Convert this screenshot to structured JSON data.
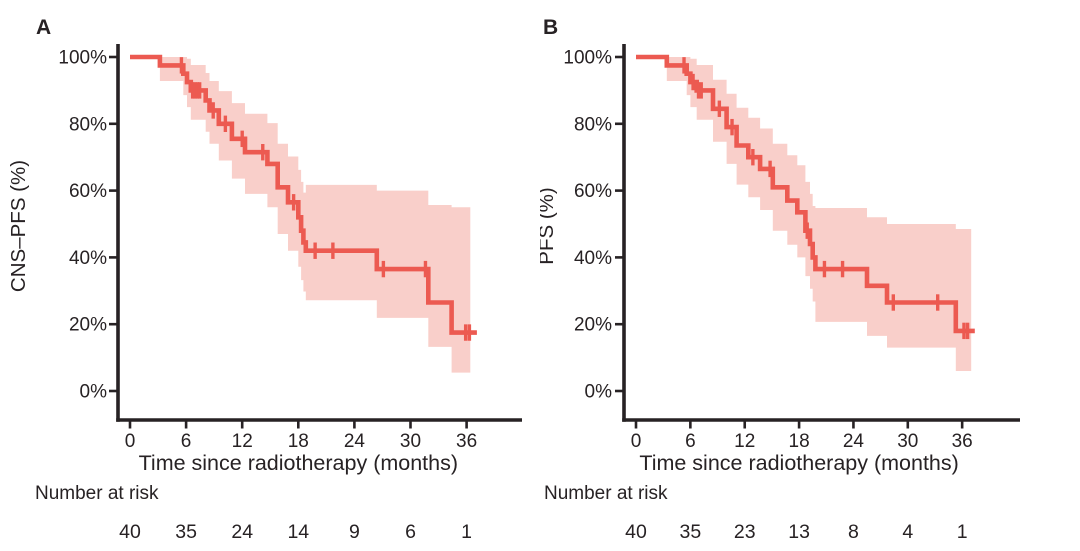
{
  "colors": {
    "curve": "#EC5A51",
    "ci_band": "#F9CFCA",
    "axis": "#272224",
    "text": "#272224",
    "background": "#FFFFFF"
  },
  "chart_data": [
    {
      "panel_label": "A",
      "type": "line",
      "style": "kaplan_meier_step",
      "ylabel": "CNS–PFS (%)",
      "xlabel": "Time since radiotherapy (months)",
      "x_tick_labels": [
        "0",
        "6",
        "12",
        "18",
        "24",
        "30",
        "36"
      ],
      "y_tick_labels": [
        "100%",
        "80%",
        "60%",
        "40%",
        "20%",
        "0%"
      ],
      "xlim": [
        0,
        42
      ],
      "ylim": [
        0,
        100
      ],
      "grid": false,
      "legend": null,
      "series": [
        {
          "name": "CNS-PFS",
          "color": "#EC5A51",
          "steps": [
            {
              "t": 0,
              "s": 100,
              "lo": 100,
              "hi": 100
            },
            {
              "t": 3.2,
              "s": 97.5,
              "lo": 92.8,
              "hi": 100
            },
            {
              "t": 5.7,
              "s": 95,
              "lo": 88.6,
              "hi": 100
            },
            {
              "t": 6.1,
              "s": 92.5,
              "lo": 85,
              "hi": 99.5
            },
            {
              "t": 6.5,
              "s": 90,
              "lo": 81.2,
              "hi": 97.6
            },
            {
              "t": 8.1,
              "s": 87,
              "lo": 77.6,
              "hi": 95.2
            },
            {
              "t": 8.5,
              "s": 84,
              "lo": 74,
              "hi": 92.8
            },
            {
              "t": 9.5,
              "s": 80,
              "lo": 69,
              "hi": 89.8
            },
            {
              "t": 10.9,
              "s": 75.5,
              "lo": 63.6,
              "hi": 86.2
            },
            {
              "t": 12.3,
              "s": 71.5,
              "lo": 59,
              "hi": 83
            },
            {
              "t": 14.7,
              "s": 68,
              "lo": 55,
              "hi": 80.2
            },
            {
              "t": 15.8,
              "s": 61,
              "lo": 47,
              "hi": 74
            },
            {
              "t": 16.9,
              "s": 56.5,
              "lo": 42,
              "hi": 70.2
            },
            {
              "t": 18,
              "s": 52,
              "lo": 37.2,
              "hi": 66.2
            },
            {
              "t": 18.3,
              "s": 48,
              "lo": 33.2,
              "hi": 62.6
            },
            {
              "t": 18.55,
              "s": 44.5,
              "lo": 29.8,
              "hi": 59.4
            },
            {
              "t": 18.8,
              "s": 42,
              "lo": 27.2,
              "hi": 61.7
            },
            {
              "t": 26.4,
              "s": 36.5,
              "lo": 21.9,
              "hi": 60
            },
            {
              "t": 31.9,
              "s": 26.5,
              "lo": 13.2,
              "hi": 55.7
            },
            {
              "t": 34.4,
              "s": 17.5,
              "lo": 5.5,
              "hi": 55
            }
          ]
        }
      ],
      "censor_marks": [
        {
          "t": 5.5,
          "s": 97.5
        },
        {
          "t": 6.7,
          "s": 90
        },
        {
          "t": 6.95,
          "s": 90
        },
        {
          "t": 7.2,
          "s": 90
        },
        {
          "t": 7.45,
          "s": 90
        },
        {
          "t": 8.9,
          "s": 84
        },
        {
          "t": 10.2,
          "s": 80
        },
        {
          "t": 12,
          "s": 75.5
        },
        {
          "t": 14.2,
          "s": 71.5
        },
        {
          "t": 17.5,
          "s": 56.5
        },
        {
          "t": 19.8,
          "s": 42
        },
        {
          "t": 21.7,
          "s": 42
        },
        {
          "t": 27.1,
          "s": 36.5
        },
        {
          "t": 31.6,
          "s": 36.5
        },
        {
          "t": 35.9,
          "s": 17.5
        },
        {
          "t": 36.3,
          "s": 17.5
        }
      ],
      "curve_end_t": 37.1,
      "band_end_t": 36.4,
      "number_at_risk": {
        "label": "Number at risk",
        "times": [
          0,
          6,
          12,
          18,
          24,
          30,
          36
        ],
        "counts": [
          "40",
          "35",
          "24",
          "14",
          "9",
          "6",
          "1"
        ]
      }
    },
    {
      "panel_label": "B",
      "type": "line",
      "style": "kaplan_meier_step",
      "ylabel": "PFS (%)",
      "xlabel": "Time since radiotherapy (months)",
      "x_tick_labels": [
        "0",
        "6",
        "12",
        "18",
        "24",
        "30",
        "36"
      ],
      "y_tick_labels": [
        "100%",
        "80%",
        "60%",
        "40%",
        "20%",
        "0%"
      ],
      "xlim": [
        0,
        42
      ],
      "ylim": [
        0,
        100
      ],
      "grid": false,
      "legend": null,
      "series": [
        {
          "name": "PFS",
          "color": "#EC5A51",
          "steps": [
            {
              "t": 0,
              "s": 100,
              "lo": 100,
              "hi": 100
            },
            {
              "t": 3.4,
              "s": 97.5,
              "lo": 92.8,
              "hi": 100
            },
            {
              "t": 5.6,
              "s": 95,
              "lo": 88.6,
              "hi": 100
            },
            {
              "t": 6,
              "s": 92.5,
              "lo": 85,
              "hi": 99.5
            },
            {
              "t": 6.7,
              "s": 90,
              "lo": 81.2,
              "hi": 97.6
            },
            {
              "t": 8.5,
              "s": 84.5,
              "lo": 74.6,
              "hi": 93.2
            },
            {
              "t": 10,
              "s": 79,
              "lo": 68,
              "hi": 89
            },
            {
              "t": 11.1,
              "s": 73.5,
              "lo": 61.8,
              "hi": 84.8
            },
            {
              "t": 12.4,
              "s": 70,
              "lo": 58,
              "hi": 81.8
            },
            {
              "t": 13.7,
              "s": 66.5,
              "lo": 54.2,
              "hi": 78.6
            },
            {
              "t": 15.1,
              "s": 61,
              "lo": 48,
              "hi": 74
            },
            {
              "t": 16.7,
              "s": 57,
              "lo": 43.8,
              "hi": 70.6
            },
            {
              "t": 17.8,
              "s": 53.5,
              "lo": 40,
              "hi": 67.6
            },
            {
              "t": 18.7,
              "s": 48,
              "lo": 34.4,
              "hi": 62.6
            },
            {
              "t": 19.2,
              "s": 44,
              "lo": 30.6,
              "hi": 59
            },
            {
              "t": 19.5,
              "s": 40,
              "lo": 26.8,
              "hi": 55.4
            },
            {
              "t": 19.8,
              "s": 36.5,
              "lo": 20.7,
              "hi": 54.8
            },
            {
              "t": 25.5,
              "s": 31.5,
              "lo": 16.5,
              "hi": 52
            },
            {
              "t": 27.7,
              "s": 26.5,
              "lo": 13,
              "hi": 50
            },
            {
              "t": 35.3,
              "s": 18,
              "lo": 6,
              "hi": 48.5
            }
          ]
        }
      ],
      "censor_marks": [
        {
          "t": 5.3,
          "s": 97.5
        },
        {
          "t": 6.3,
          "s": 92.5
        },
        {
          "t": 6.9,
          "s": 90
        },
        {
          "t": 7.2,
          "s": 90
        },
        {
          "t": 9.2,
          "s": 84.5
        },
        {
          "t": 10.6,
          "s": 79
        },
        {
          "t": 12.9,
          "s": 70
        },
        {
          "t": 14.8,
          "s": 66.5
        },
        {
          "t": 18.9,
          "s": 48
        },
        {
          "t": 20.8,
          "s": 36.5
        },
        {
          "t": 22.8,
          "s": 36.5
        },
        {
          "t": 28.4,
          "s": 26.5
        },
        {
          "t": 33.3,
          "s": 26.5
        },
        {
          "t": 36.2,
          "s": 18
        },
        {
          "t": 36.6,
          "s": 18
        }
      ],
      "curve_end_t": 37.4,
      "band_end_t": 37,
      "number_at_risk": {
        "label": "Number at risk",
        "times": [
          0,
          6,
          12,
          18,
          24,
          30,
          36
        ],
        "counts": [
          "40",
          "35",
          "23",
          "13",
          "8",
          "4",
          "1"
        ]
      }
    }
  ]
}
